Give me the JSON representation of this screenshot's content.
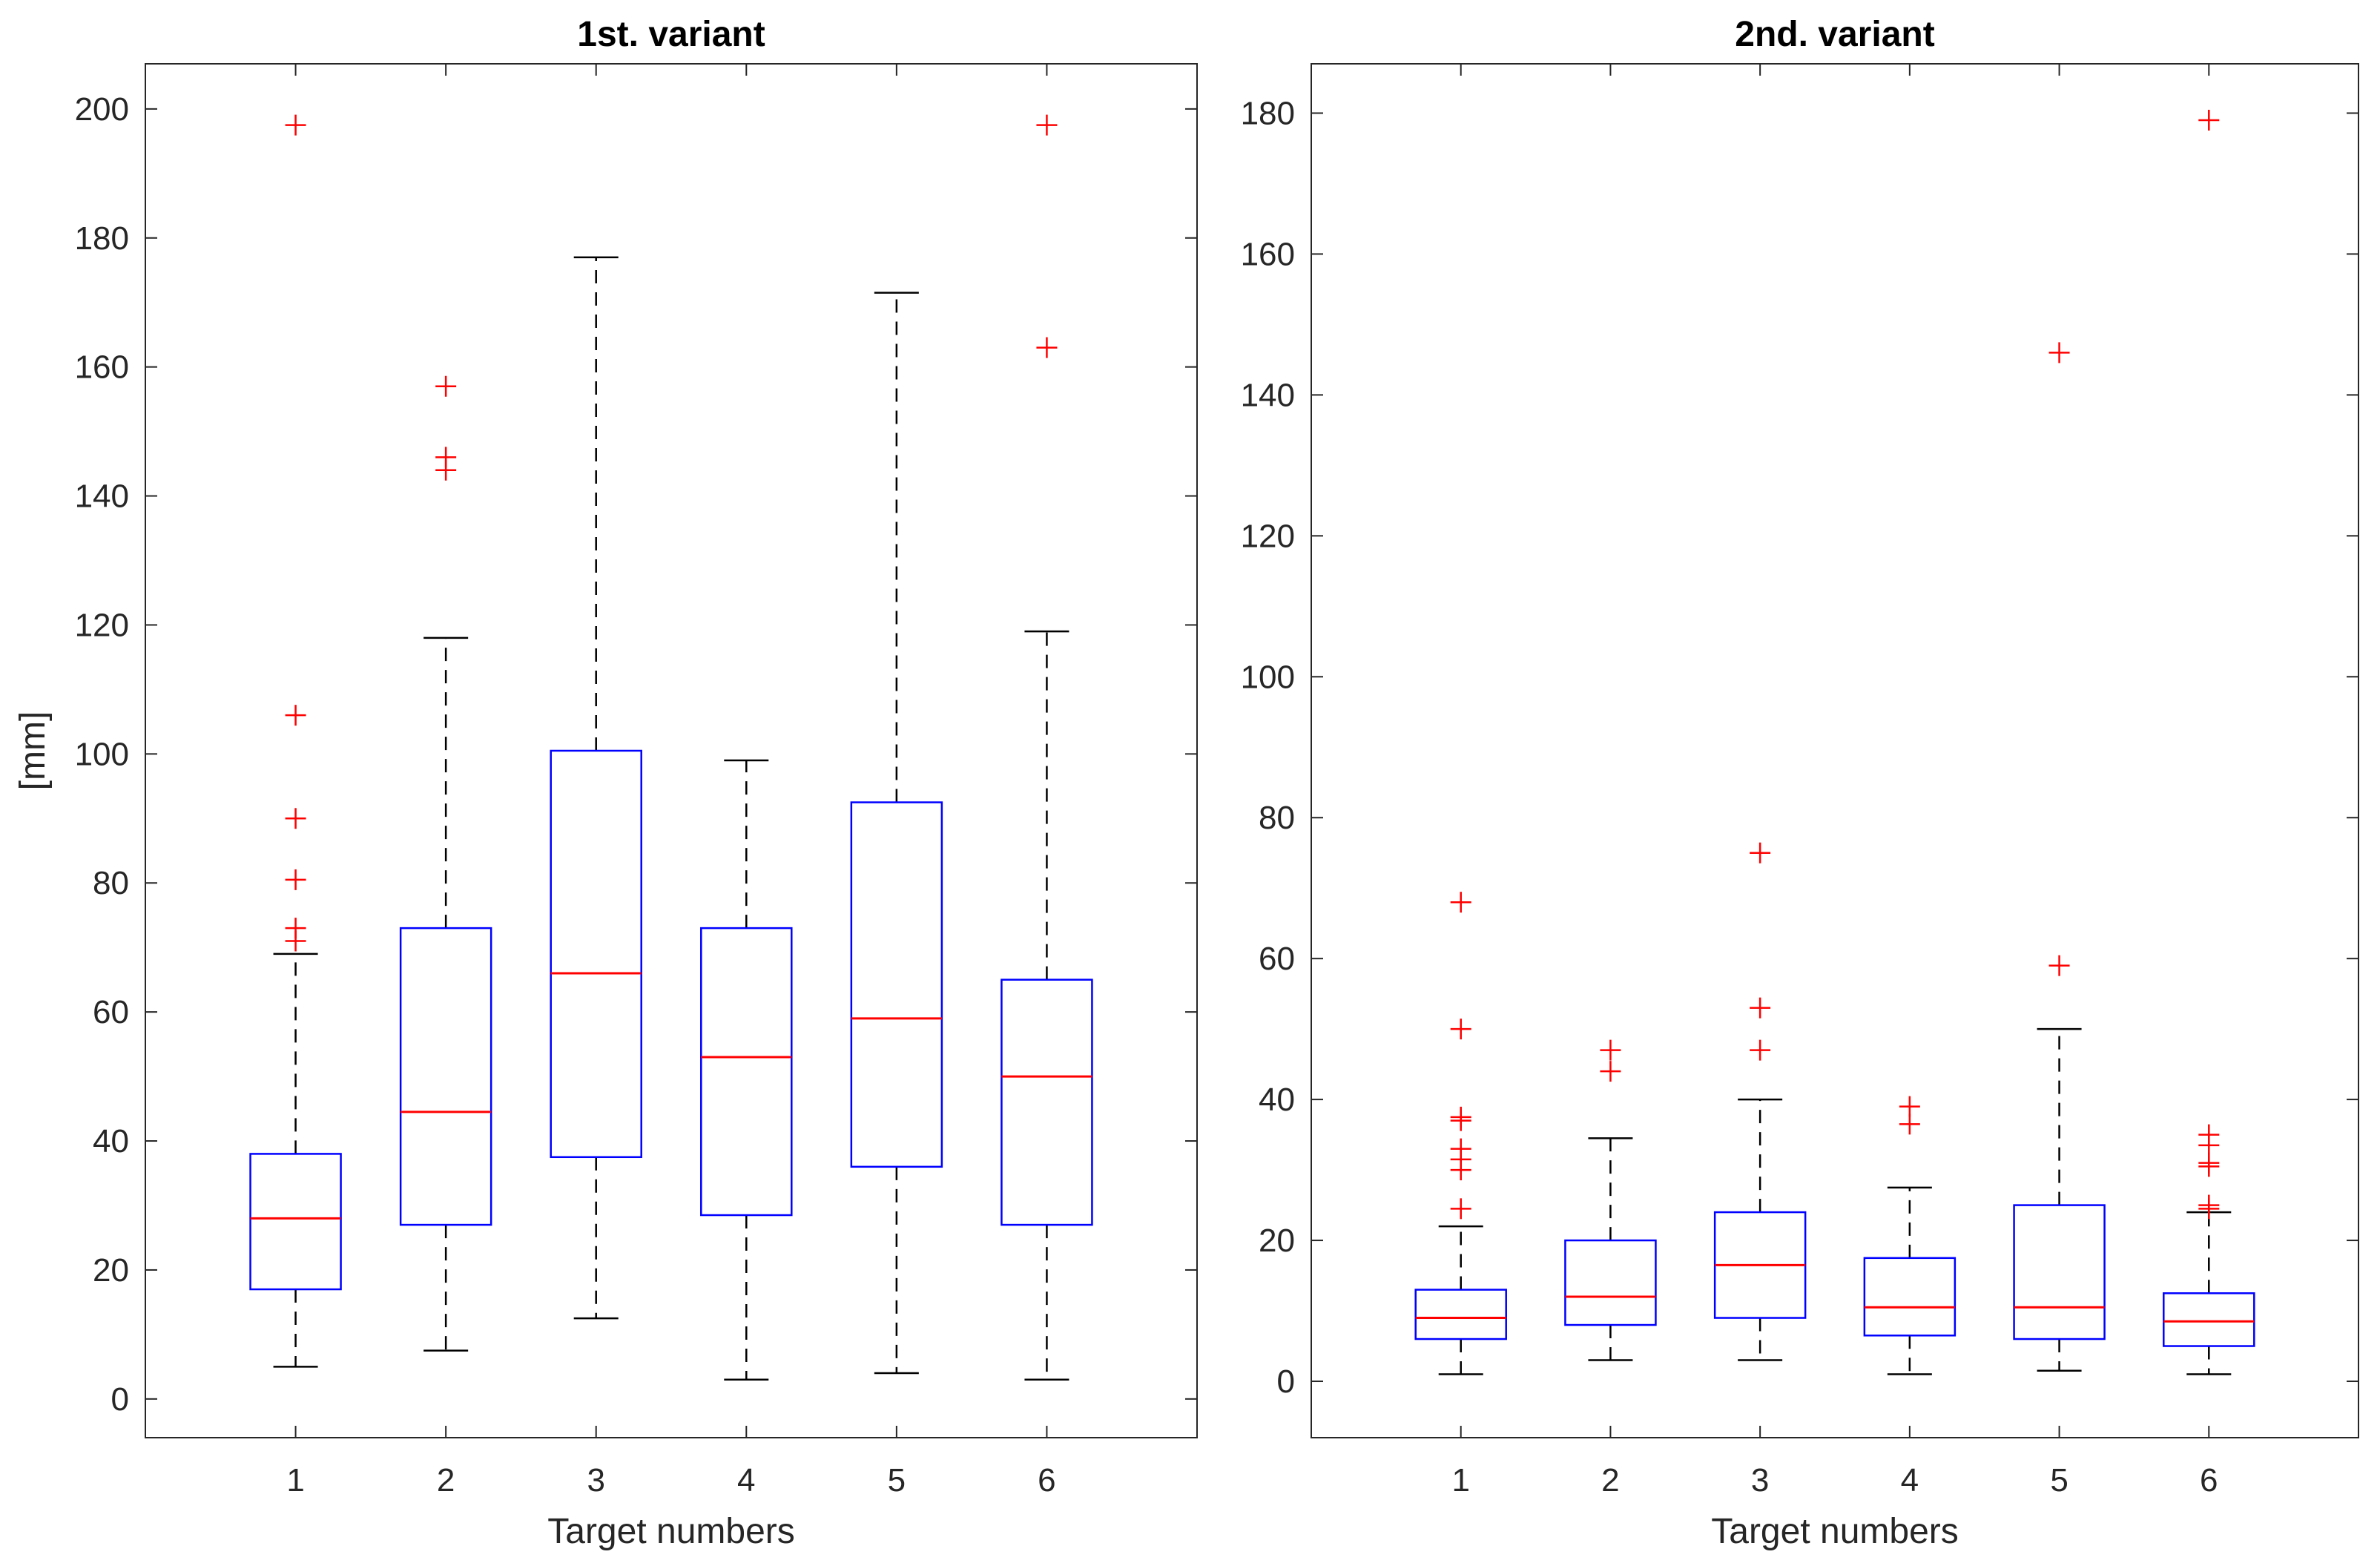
{
  "chart_data": [
    {
      "type": "boxplot",
      "title": "1st. variant",
      "xlabel": "Target numbers",
      "ylabel": "[mm]",
      "ylim": [
        -6,
        207
      ],
      "yticks": [
        0,
        20,
        40,
        60,
        80,
        100,
        120,
        140,
        160,
        180,
        200
      ],
      "categories": [
        "1",
        "2",
        "3",
        "4",
        "5",
        "6"
      ],
      "boxes": [
        {
          "category": "1",
          "whisker_low": 5,
          "q1": 17,
          "median": 28,
          "q3": 38,
          "whisker_high": 69,
          "outliers": [
            71,
            73,
            80.5,
            90,
            106,
            197.5
          ]
        },
        {
          "category": "2",
          "whisker_low": 7.5,
          "q1": 27,
          "median": 44.5,
          "q3": 73,
          "whisker_high": 118,
          "outliers": [
            144,
            146,
            157
          ]
        },
        {
          "category": "3",
          "whisker_low": 12.5,
          "q1": 37.5,
          "median": 66,
          "q3": 100.5,
          "whisker_high": 177,
          "outliers": []
        },
        {
          "category": "4",
          "whisker_low": 3,
          "q1": 28.5,
          "median": 53,
          "q3": 73,
          "whisker_high": 99,
          "outliers": []
        },
        {
          "category": "5",
          "whisker_low": 4,
          "q1": 36,
          "median": 59,
          "q3": 92.5,
          "whisker_high": 171.5,
          "outliers": []
        },
        {
          "category": "6",
          "whisker_low": 3,
          "q1": 27,
          "median": 50,
          "q3": 65,
          "whisker_high": 119,
          "outliers": [
            163,
            197.5
          ]
        }
      ]
    },
    {
      "type": "boxplot",
      "title": "2nd. variant",
      "xlabel": "Target numbers",
      "ylabel": "",
      "ylim": [
        -8,
        187
      ],
      "yticks": [
        0,
        20,
        40,
        60,
        80,
        100,
        120,
        140,
        160,
        180
      ],
      "categories": [
        "1",
        "2",
        "3",
        "4",
        "5",
        "6"
      ],
      "boxes": [
        {
          "category": "1",
          "whisker_low": 1,
          "q1": 6,
          "median": 9,
          "q3": 13,
          "whisker_high": 22,
          "outliers": [
            24.5,
            30,
            31.5,
            33,
            37,
            37.5,
            50,
            68
          ]
        },
        {
          "category": "2",
          "whisker_low": 3,
          "q1": 8,
          "median": 12,
          "q3": 20,
          "whisker_high": 34.5,
          "outliers": [
            44,
            47
          ]
        },
        {
          "category": "3",
          "whisker_low": 3,
          "q1": 9,
          "median": 16.5,
          "q3": 24,
          "whisker_high": 40,
          "outliers": [
            47,
            53,
            75
          ]
        },
        {
          "category": "4",
          "whisker_low": 1,
          "q1": 6.5,
          "median": 10.5,
          "q3": 17.5,
          "whisker_high": 27.5,
          "outliers": [
            36.5,
            39
          ]
        },
        {
          "category": "5",
          "whisker_low": 1.5,
          "q1": 6,
          "median": 10.5,
          "q3": 25,
          "whisker_high": 50,
          "outliers": [
            59,
            146
          ]
        },
        {
          "category": "6",
          "whisker_low": 1,
          "q1": 5,
          "median": 8.5,
          "q3": 12.5,
          "whisker_high": 24,
          "outliers": [
            24.5,
            25,
            30.5,
            31,
            33.5,
            35,
            179
          ]
        }
      ]
    }
  ],
  "colors": {
    "box": "#0000ff",
    "median": "#ff0000",
    "outlier": "#ff0000",
    "whisker": "#000000",
    "axes": "#262626"
  }
}
